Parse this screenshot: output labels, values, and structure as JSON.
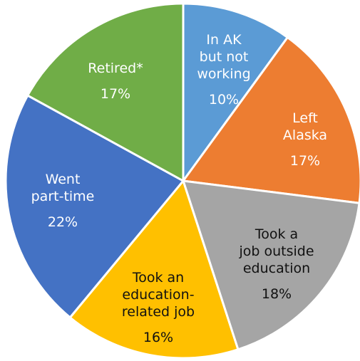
{
  "chart_data": {
    "type": "pie",
    "title": "",
    "slices": [
      {
        "lines": [
          "In AK",
          "but not",
          "working"
        ],
        "value": 10,
        "value_label": "10%",
        "color": "#5b9bd5",
        "text_color": "#ffffff"
      },
      {
        "lines": [
          "Left",
          "Alaska"
        ],
        "value": 17,
        "value_label": "17%",
        "color": "#ed7d31",
        "text_color": "#ffffff"
      },
      {
        "lines": [
          "Took a",
          "job outside",
          "education"
        ],
        "value": 18,
        "value_label": "18%",
        "color": "#a5a5a5",
        "text_color": "#111111"
      },
      {
        "lines": [
          "Took an",
          "education-",
          "related job"
        ],
        "value": 16,
        "value_label": "16%",
        "color": "#ffc000",
        "text_color": "#111111"
      },
      {
        "lines": [
          "Went",
          "part-time"
        ],
        "value": 22,
        "value_label": "22%",
        "color": "#4472c4",
        "text_color": "#ffffff"
      },
      {
        "lines": [
          "Retired*"
        ],
        "value": 17,
        "value_label": "17%",
        "color": "#70ad47",
        "text_color": "#ffffff"
      }
    ]
  }
}
